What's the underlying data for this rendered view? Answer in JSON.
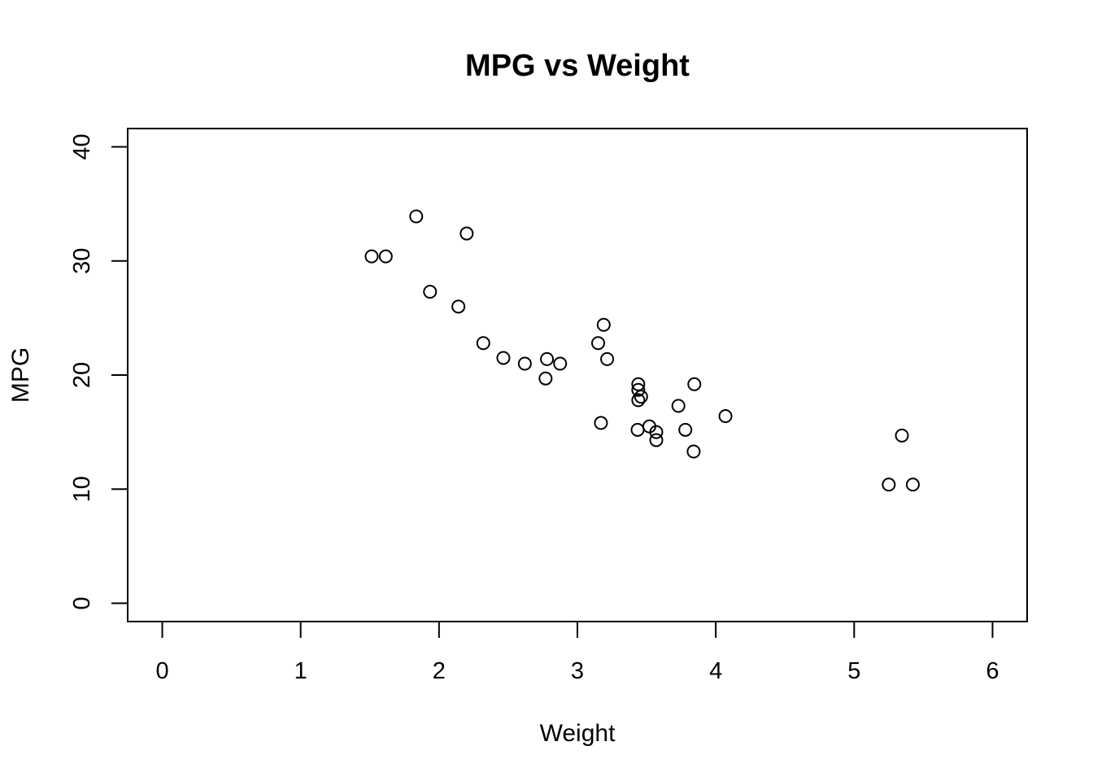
{
  "chart_data": {
    "type": "scatter",
    "title": "MPG vs Weight",
    "xlabel": "Weight",
    "ylabel": "MPG",
    "xlim": [
      -0.25,
      6.25
    ],
    "ylim": [
      -1.6,
      41.6
    ],
    "xticks": [
      0,
      1,
      2,
      3,
      4,
      5,
      6
    ],
    "yticks": [
      0,
      10,
      20,
      30,
      40
    ],
    "xtick_labels": [
      "0",
      "1",
      "2",
      "3",
      "4",
      "5",
      "6"
    ],
    "ytick_labels": [
      "0",
      "10",
      "20",
      "30",
      "40"
    ],
    "grid": false,
    "legend": "none",
    "marker": "open-circle",
    "colors": {
      "marker": "#000000",
      "background": "#ffffff"
    },
    "x": [
      2.62,
      2.875,
      2.32,
      3.215,
      3.44,
      3.46,
      3.57,
      3.19,
      3.15,
      3.44,
      3.44,
      4.07,
      3.73,
      3.78,
      5.25,
      5.424,
      5.345,
      2.2,
      1.615,
      1.835,
      2.465,
      3.52,
      3.435,
      3.84,
      3.845,
      1.935,
      2.14,
      1.513,
      3.17,
      2.77,
      3.57,
      2.78
    ],
    "y": [
      21.0,
      21.0,
      22.8,
      21.4,
      18.7,
      18.1,
      14.3,
      24.4,
      22.8,
      19.2,
      17.8,
      16.4,
      17.3,
      15.2,
      10.4,
      10.4,
      14.7,
      32.4,
      30.4,
      33.9,
      21.5,
      15.5,
      15.2,
      13.3,
      19.2,
      27.3,
      26.0,
      30.4,
      15.8,
      19.7,
      15.0,
      21.4
    ]
  }
}
